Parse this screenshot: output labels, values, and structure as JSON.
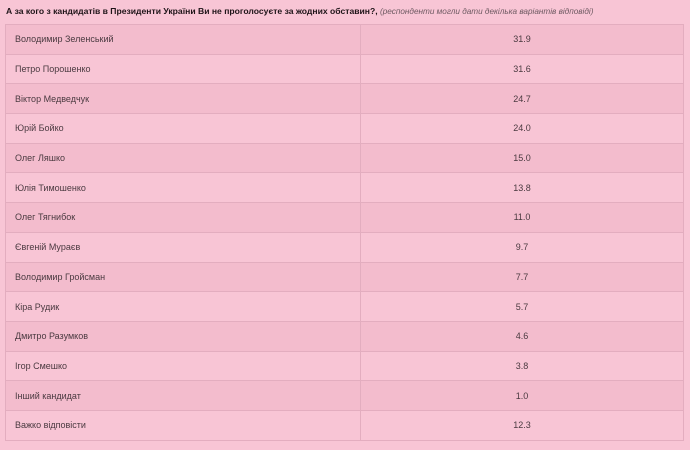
{
  "question": "А за кого з кандидатів в Президенти України Ви не проголосуєте за жодних обставин?,",
  "note": "(респонденти могли дати декілька варіантів відповіді)",
  "rows": [
    {
      "name": "Володимир Зеленський",
      "value": "31.9"
    },
    {
      "name": "Петро Порошенко",
      "value": "31.6"
    },
    {
      "name": "Віктор Медведчук",
      "value": "24.7"
    },
    {
      "name": "Юрій Бойко",
      "value": "24.0"
    },
    {
      "name": "Олег Ляшко",
      "value": "15.0"
    },
    {
      "name": "Юлія Тимошенко",
      "value": "13.8"
    },
    {
      "name": "Олег Тягнибок",
      "value": "11.0"
    },
    {
      "name": "Євгеній Мураєв",
      "value": "9.7"
    },
    {
      "name": "Володимир Гройсман",
      "value": "7.7"
    },
    {
      "name": "Кіра Рудик",
      "value": "5.7"
    },
    {
      "name": "Дмитро Разумков",
      "value": "4.6"
    },
    {
      "name": "Ігор Смешко",
      "value": "3.8"
    },
    {
      "name": "Інший кандидат",
      "value": "1.0"
    },
    {
      "name": "Важко відповісти",
      "value": "12.3"
    }
  ]
}
